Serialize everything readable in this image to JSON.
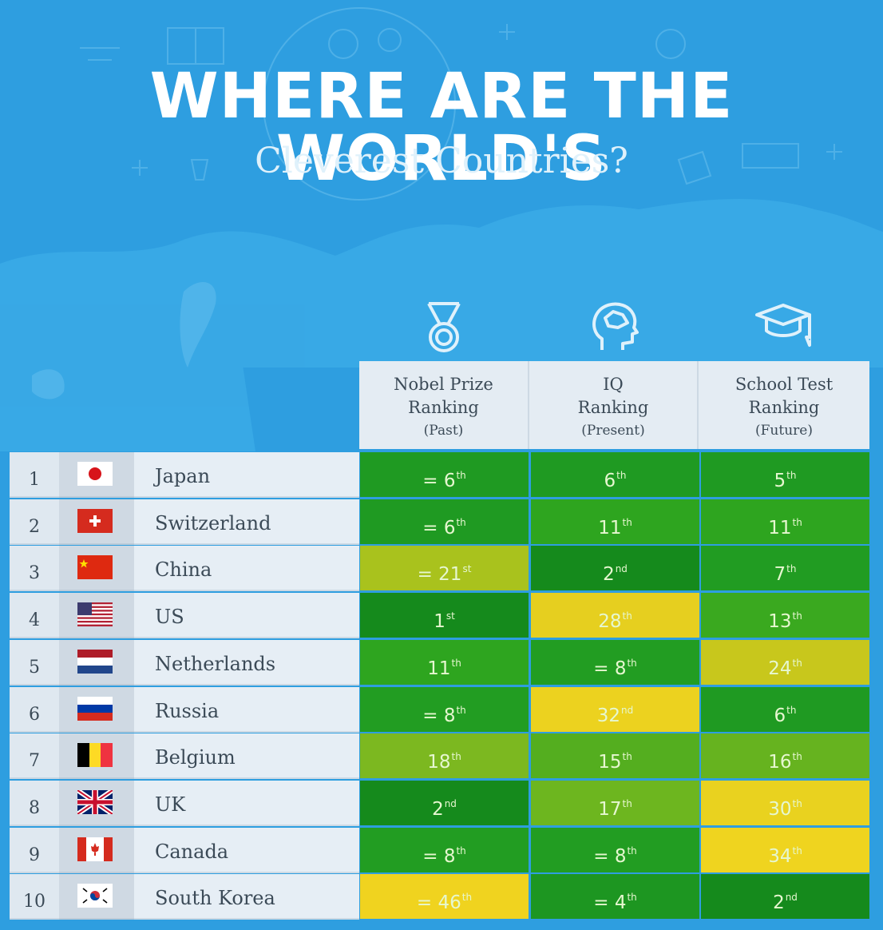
{
  "header": {
    "title": "WHERE ARE THE WORLD'S",
    "subtitle": "Cleverest Countries?"
  },
  "columns": [
    {
      "icon": "medal-icon",
      "line1": "Nobel Prize",
      "line2": "Ranking",
      "sub": "(Past)"
    },
    {
      "icon": "brain-head-icon",
      "line1": "IQ",
      "line2": "Ranking",
      "sub": "(Present)"
    },
    {
      "icon": "graduation-cap-icon",
      "line1": "School Test",
      "line2": "Ranking",
      "sub": "(Future)"
    }
  ],
  "rows": [
    {
      "rank": "1",
      "country": "Japan",
      "flag": "japan-flag-icon",
      "cells": [
        {
          "text": "= 6",
          "sup": "th",
          "color": "#1f9a22"
        },
        {
          "text": "6",
          "sup": "th",
          "color": "#1f9a22"
        },
        {
          "text": "5",
          "sup": "th",
          "color": "#1f9a22"
        }
      ]
    },
    {
      "rank": "2",
      "country": "Switzerland",
      "flag": "switzerland-flag-icon",
      "cells": [
        {
          "text": "= 6",
          "sup": "th",
          "color": "#1f9a22"
        },
        {
          "text": "11",
          "sup": "th",
          "color": "#2ea51f"
        },
        {
          "text": "11",
          "sup": "th",
          "color": "#2ea51f"
        }
      ]
    },
    {
      "rank": "3",
      "country": "China",
      "flag": "china-flag-icon",
      "cells": [
        {
          "text": "= 21",
          "sup": "st",
          "color": "#a9c21d"
        },
        {
          "text": "2",
          "sup": "nd",
          "color": "#158a1c"
        },
        {
          "text": "7",
          "sup": "th",
          "color": "#219c22"
        }
      ]
    },
    {
      "rank": "4",
      "country": "US",
      "flag": "us-flag-icon",
      "cells": [
        {
          "text": "1",
          "sup": "st",
          "color": "#158a1c"
        },
        {
          "text": "28",
          "sup": "th",
          "color": "#e6cf1f"
        },
        {
          "text": "13",
          "sup": "th",
          "color": "#3aa91f"
        }
      ]
    },
    {
      "rank": "5",
      "country": "Netherlands",
      "flag": "netherlands-flag-icon",
      "cells": [
        {
          "text": "11",
          "sup": "th",
          "color": "#2ea51f"
        },
        {
          "text": "= 8",
          "sup": "th",
          "color": "#229d22"
        },
        {
          "text": "24",
          "sup": "th",
          "color": "#c8c71c"
        }
      ]
    },
    {
      "rank": "6",
      "country": "Russia",
      "flag": "russia-flag-icon",
      "cells": [
        {
          "text": "= 8",
          "sup": "th",
          "color": "#229d22"
        },
        {
          "text": "32",
          "sup": "nd",
          "color": "#ecd21f"
        },
        {
          "text": "6",
          "sup": "th",
          "color": "#1f9a22"
        }
      ]
    },
    {
      "rank": "7",
      "country": "Belgium",
      "flag": "belgium-flag-icon",
      "cells": [
        {
          "text": "18",
          "sup": "th",
          "color": "#7cb820"
        },
        {
          "text": "15",
          "sup": "th",
          "color": "#54ae1f"
        },
        {
          "text": "16",
          "sup": "th",
          "color": "#66b31f"
        }
      ]
    },
    {
      "rank": "8",
      "country": "UK",
      "flag": "uk-flag-icon",
      "cells": [
        {
          "text": "2",
          "sup": "nd",
          "color": "#158a1c"
        },
        {
          "text": "17",
          "sup": "th",
          "color": "#6db61f"
        },
        {
          "text": "30",
          "sup": "th",
          "color": "#e9d21f"
        }
      ]
    },
    {
      "rank": "9",
      "country": "Canada",
      "flag": "canada-flag-icon",
      "cells": [
        {
          "text": "= 8",
          "sup": "th",
          "color": "#229d22"
        },
        {
          "text": "= 8",
          "sup": "th",
          "color": "#229d22"
        },
        {
          "text": "34",
          "sup": "th",
          "color": "#efd41f"
        }
      ]
    },
    {
      "rank": "10",
      "country": "South Korea",
      "flag": "south-korea-flag-icon",
      "cells": [
        {
          "text": "= 46",
          "sup": "th",
          "color": "#f0d31f"
        },
        {
          "text": "= 4",
          "sup": "th",
          "color": "#1d9621"
        },
        {
          "text": "2",
          "sup": "nd",
          "color": "#158a1c"
        }
      ]
    }
  ]
}
